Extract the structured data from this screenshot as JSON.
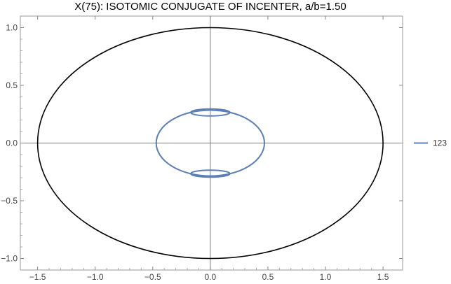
{
  "chart_data": {
    "type": "line",
    "title": "X(75): ISOTOMIC CONJUGATE OF INCENTER, a/b=1.50",
    "xlabel": "",
    "ylabel": "",
    "xlim": [
      -1.65,
      1.67
    ],
    "ylim": [
      -1.1,
      1.1
    ],
    "x_ticks": [
      -1.5,
      -1.0,
      -0.5,
      0.0,
      0.5,
      1.0,
      1.5
    ],
    "x_tick_labels": [
      "−1.5",
      "−1.0",
      "−0.5",
      "0.0",
      "0.5",
      "1.0",
      "1.5"
    ],
    "y_ticks": [
      -1.0,
      -0.5,
      0.0,
      0.5,
      1.0
    ],
    "y_tick_labels": [
      "−1.0",
      "−0.5",
      "0.0",
      "0.5",
      "1.0"
    ],
    "grid": false,
    "legend_position": "right",
    "series": [
      {
        "color": "#000000",
        "shape": "ellipse",
        "points": [
          [
            1.5,
            0.0
          ],
          [
            0.0,
            1.0
          ],
          [
            -1.5,
            0.0
          ],
          [
            0.0,
            -1.0
          ]
        ]
      },
      {
        "name": "123",
        "color": "#5B7FB5",
        "shape": "locus",
        "points": [
          [
            0.47,
            0.0
          ],
          [
            0.0,
            0.285
          ],
          [
            -0.47,
            0.0
          ],
          [
            0.0,
            -0.285
          ],
          [
            0.17,
            0.265
          ],
          [
            -0.17,
            0.265
          ],
          [
            0.17,
            -0.265
          ],
          [
            -0.17,
            -0.265
          ]
        ]
      }
    ]
  }
}
